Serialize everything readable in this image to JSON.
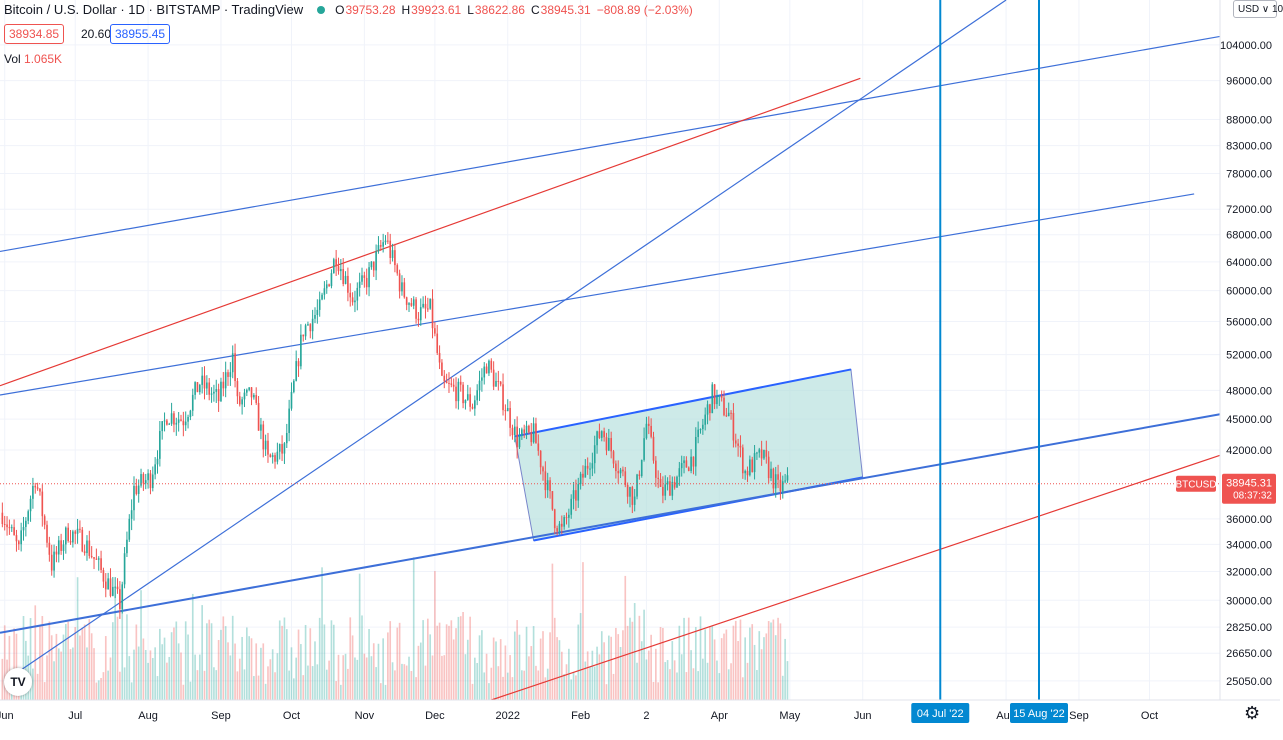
{
  "header": {
    "title": "Bitcoin / U.S. Dollar · 1D · BITSTAMP · TradingView",
    "o_label": "O",
    "o_value": "39753.28",
    "h_label": "H",
    "h_value": "39923.61",
    "l_label": "L",
    "l_value": "38622.86",
    "c_label": "C",
    "c_value": "38945.31",
    "change": "−808.89 (−2.03%)",
    "sell_price": "38934.85",
    "spread": "20.60",
    "buy_price": "38955.45",
    "vol_label": "Vol",
    "vol_value": "1.065K",
    "currency": "USD ∨ 10"
  },
  "colors": {
    "up": "#26a69a",
    "down": "#ef5350",
    "blue_line": "#2962ff",
    "red_line": "#e53935",
    "channel_fill": "#b2dfdb",
    "vline": "#0288d1",
    "axis_text": "#131722"
  },
  "icons": {
    "logo": "tradingview-logo-icon",
    "settings": "gear-icon"
  },
  "chart_data": {
    "type": "candlestick",
    "symbol": "BTCUSD",
    "timeframe": "1D",
    "exchange": "BITSTAMP",
    "y_scale": "log",
    "ylim": [
      24000,
      115000
    ],
    "y_ticks": [
      104000,
      96000,
      88000,
      83000,
      78000,
      72000,
      68000,
      64000,
      60000,
      56000,
      52000,
      48000,
      45000,
      42000,
      36000,
      34000,
      32000,
      30000,
      28250,
      26650,
      25050
    ],
    "y_tick_labels": [
      "104000.00",
      "96000.00",
      "88000.00",
      "83000.00",
      "78000.00",
      "72000.00",
      "68000.00",
      "64000.00",
      "60000.00",
      "56000.00",
      "52000.00",
      "48000.00",
      "45000.00",
      "42000.00",
      "36000.00",
      "34000.00",
      "32000.00",
      "30000.00",
      "28250.00",
      "26650.00",
      "25050.00"
    ],
    "x_ticks": [
      {
        "label": "Jun",
        "date": "2021-06-01"
      },
      {
        "label": "Jul",
        "date": "2021-07-01"
      },
      {
        "label": "Aug",
        "date": "2021-08-01"
      },
      {
        "label": "Sep",
        "date": "2021-09-01"
      },
      {
        "label": "Oct",
        "date": "2021-10-01"
      },
      {
        "label": "Nov",
        "date": "2021-11-01"
      },
      {
        "label": "Dec",
        "date": "2021-12-01"
      },
      {
        "label": "2022",
        "date": "2022-01-01"
      },
      {
        "label": "Feb",
        "date": "2022-02-01"
      },
      {
        "label": "2",
        "date": "2022-03-01"
      },
      {
        "label": "Apr",
        "date": "2022-04-01"
      },
      {
        "label": "May",
        "date": "2022-05-01"
      },
      {
        "label": "Jun",
        "date": "2022-06-01"
      },
      {
        "label": "Aug",
        "date": "2022-08-01"
      },
      {
        "label": "Sep",
        "date": "2022-09-01"
      },
      {
        "label": "Oct",
        "date": "2022-10-01"
      }
    ],
    "xlim": [
      "2021-05-30",
      "2022-10-31"
    ],
    "last_price": 38945.31,
    "last_price_label": "38945.31",
    "countdown": "08:37:32",
    "price_path": [
      [
        "2021-05-31",
        36500
      ],
      [
        "2021-06-07",
        33500
      ],
      [
        "2021-06-14",
        39500
      ],
      [
        "2021-06-21",
        32500
      ],
      [
        "2021-06-28",
        35000
      ],
      [
        "2021-07-05",
        34200
      ],
      [
        "2021-07-12",
        32000
      ],
      [
        "2021-07-20",
        29800
      ],
      [
        "2021-07-26",
        38500
      ],
      [
        "2021-08-02",
        39500
      ],
      [
        "2021-08-09",
        45500
      ],
      [
        "2021-08-16",
        45000
      ],
      [
        "2021-08-23",
        48800
      ],
      [
        "2021-08-31",
        47000
      ],
      [
        "2021-09-06",
        51800
      ],
      [
        "2021-09-08",
        46500
      ],
      [
        "2021-09-14",
        47500
      ],
      [
        "2021-09-21",
        41000
      ],
      [
        "2021-09-28",
        42000
      ],
      [
        "2021-10-06",
        55000
      ],
      [
        "2021-10-13",
        57500
      ],
      [
        "2021-10-20",
        65000
      ],
      [
        "2021-10-27",
        59000
      ],
      [
        "2021-11-02",
        61500
      ],
      [
        "2021-11-10",
        67500
      ],
      [
        "2021-11-17",
        60000
      ],
      [
        "2021-11-24",
        57000
      ],
      [
        "2021-11-29",
        57500
      ],
      [
        "2021-12-04",
        48500
      ],
      [
        "2021-12-10",
        48000
      ],
      [
        "2021-12-17",
        46500
      ],
      [
        "2021-12-23",
        51000
      ],
      [
        "2021-12-30",
        47000
      ],
      [
        "2022-01-05",
        43000
      ],
      [
        "2022-01-12",
        43500
      ],
      [
        "2022-01-21",
        36000
      ],
      [
        "2022-01-24",
        35000
      ],
      [
        "2022-01-31",
        38500
      ],
      [
        "2022-02-10",
        44000
      ],
      [
        "2022-02-17",
        40500
      ],
      [
        "2022-02-24",
        37500
      ],
      [
        "2022-03-01",
        44500
      ],
      [
        "2022-03-07",
        38000
      ],
      [
        "2022-03-14",
        39500
      ],
      [
        "2022-03-21",
        41500
      ],
      [
        "2022-03-29",
        47500
      ],
      [
        "2022-04-05",
        45500
      ],
      [
        "2022-04-12",
        40000
      ],
      [
        "2022-04-19",
        41500
      ],
      [
        "2022-04-26",
        38500
      ],
      [
        "2022-04-30",
        38945
      ]
    ],
    "trendlines": [
      {
        "color": "blue",
        "from": [
          "2021-05-30",
          65500
        ],
        "to": [
          "2022-10-31",
          106000
        ]
      },
      {
        "color": "blue",
        "from": [
          "2021-05-30",
          47500
        ],
        "to": [
          "2022-10-20",
          74500
        ]
      },
      {
        "color": "blue",
        "from": [
          "2021-05-30",
          27900
        ],
        "to": [
          "2022-10-31",
          45500
        ],
        "bold": true
      },
      {
        "color": "blue",
        "from": [
          "2021-06-05",
          25400
        ],
        "to": [
          "2022-08-01",
          115000
        ]
      },
      {
        "color": "red",
        "from": [
          "2021-05-30",
          48500
        ],
        "to": [
          "2022-05-31",
          96500
        ]
      },
      {
        "color": "red",
        "from": [
          "2021-12-25",
          24000
        ],
        "to": [
          "2022-10-31",
          41500
        ]
      }
    ],
    "channel": [
      [
        "2022-01-04",
        43300
      ],
      [
        "2022-05-27",
        50300
      ],
      [
        "2022-06-01",
        39500
      ],
      [
        "2022-01-12",
        34300
      ]
    ],
    "vertical_markers": [
      {
        "date": "2022-07-04",
        "label": "04 Jul '22"
      },
      {
        "date": "2022-08-15",
        "label": "15 Aug '22"
      }
    ],
    "grid": true,
    "legend": "none"
  }
}
